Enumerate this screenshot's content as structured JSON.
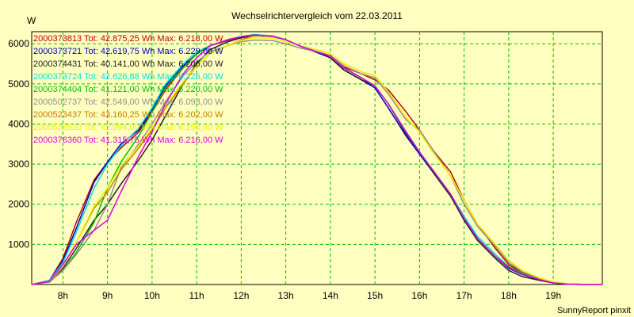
{
  "chart_data": {
    "type": "line",
    "title": "Wechselrichtervergleich vom 22.03.2011",
    "ylabel": "W",
    "footer": "SunnyReport pinxit",
    "ylim": [
      0,
      6300
    ],
    "xlim": [
      7.3,
      20.1
    ],
    "y_ticks": [
      1000,
      2000,
      3000,
      4000,
      5000,
      6000
    ],
    "x_ticks": [
      {
        "value": 8,
        "label": "8h"
      },
      {
        "value": 9,
        "label": "9h"
      },
      {
        "value": 10,
        "label": "10h"
      },
      {
        "value": 11,
        "label": "11h"
      },
      {
        "value": 12,
        "label": "12h"
      },
      {
        "value": 13,
        "label": "13h"
      },
      {
        "value": 14,
        "label": "14h"
      },
      {
        "value": 15,
        "label": "15h"
      },
      {
        "value": 16,
        "label": "16h"
      },
      {
        "value": 17,
        "label": "17h"
      },
      {
        "value": 18,
        "label": "18h"
      },
      {
        "value": 19,
        "label": "19h"
      }
    ],
    "grid": true,
    "legend_position": "top-left",
    "series": [
      {
        "legend": "2000373813 Tot: 42.875,25 Wh Max: 6.218,00 W",
        "color": "#c00000",
        "x": [
          7.3,
          7.7,
          8.0,
          8.3,
          8.7,
          9.0,
          9.3,
          9.7,
          10.0,
          10.3,
          10.7,
          11.0,
          11.3,
          11.7,
          12.0,
          12.3,
          12.7,
          13.0,
          13.3,
          13.7,
          14.0,
          14.3,
          14.7,
          15.0,
          15.3,
          15.7,
          16.0,
          16.3,
          16.7,
          17.0,
          17.3,
          17.7,
          18.0,
          18.3,
          18.7,
          19.0,
          19.3,
          19.7,
          20.1
        ],
        "y": [
          0,
          100,
          650,
          1550,
          2600,
          3050,
          3400,
          3800,
          4300,
          4850,
          5400,
          5750,
          5950,
          6080,
          6150,
          6200,
          6190,
          6100,
          5950,
          5800,
          5700,
          5420,
          5250,
          5100,
          4850,
          4300,
          3850,
          3350,
          2800,
          2100,
          1500,
          900,
          500,
          300,
          150,
          60,
          20,
          0,
          0
        ]
      },
      {
        "legend": "2000373721 Tot: 42.619,75 Wh Max: 6.229,00 W",
        "color": "#0000c0",
        "x": [
          7.3,
          7.7,
          8.0,
          8.3,
          8.7,
          9.0,
          9.3,
          9.7,
          10.0,
          10.3,
          10.7,
          11.0,
          11.3,
          11.7,
          12.0,
          12.3,
          12.7,
          13.0,
          13.3,
          13.7,
          14.0,
          14.3,
          14.7,
          15.0,
          15.3,
          15.7,
          16.0,
          16.3,
          16.7,
          17.0,
          17.3,
          17.7,
          18.0,
          18.3,
          18.7,
          19.0,
          19.3,
          19.7,
          20.1
        ],
        "y": [
          0,
          100,
          600,
          1400,
          2550,
          3050,
          3500,
          3850,
          4350,
          4950,
          5450,
          5750,
          5950,
          6100,
          6180,
          6229,
          6190,
          6100,
          5950,
          5780,
          5650,
          5350,
          5100,
          4900,
          4400,
          3700,
          3250,
          2800,
          2200,
          1650,
          1150,
          700,
          400,
          250,
          120,
          40,
          10,
          0,
          0
        ]
      },
      {
        "legend": "2000374431 Tot: 40.141,00 Wh Max: 6.206,00 W",
        "color": "#202020",
        "x": [
          7.3,
          7.7,
          8.0,
          8.3,
          8.7,
          9.0,
          9.3,
          9.7,
          10.0,
          10.3,
          10.7,
          11.0,
          11.3,
          11.7,
          12.0,
          12.3,
          12.7,
          13.0,
          13.3,
          13.7,
          14.0,
          14.3,
          14.7,
          15.0,
          15.3,
          15.7,
          16.0,
          16.3,
          16.7,
          17.0,
          17.3,
          17.7,
          18.0,
          18.3,
          18.7,
          19.0,
          19.3,
          19.7,
          20.1
        ],
        "y": [
          0,
          80,
          400,
          900,
          1600,
          2000,
          2500,
          3100,
          3600,
          4200,
          5000,
          5500,
          5850,
          6050,
          6150,
          6206,
          6180,
          6100,
          5950,
          5800,
          5650,
          5350,
          5100,
          4950,
          4500,
          3750,
          3300,
          2800,
          2200,
          1600,
          1100,
          650,
          350,
          200,
          100,
          40,
          10,
          0,
          0
        ]
      },
      {
        "legend": "2000373724 Tot: 42.626,88 Wh Max: 6.225,00 W",
        "color": "#00e0e0",
        "x": [
          7.3,
          7.7,
          8.0,
          8.3,
          8.7,
          9.0,
          9.3,
          9.7,
          10.0,
          10.3,
          10.7,
          11.0,
          11.3,
          11.7,
          12.0,
          12.3,
          12.7,
          13.0,
          13.3,
          13.7,
          14.0,
          14.3,
          14.7,
          15.0,
          15.3,
          15.7,
          16.0,
          16.3,
          16.7,
          17.0,
          17.3,
          17.7,
          18.0,
          18.3,
          18.7,
          19.0,
          19.3,
          19.7,
          20.1
        ],
        "y": [
          0,
          100,
          550,
          1300,
          2400,
          3000,
          3450,
          3900,
          4400,
          5000,
          5500,
          5800,
          5950,
          6100,
          6180,
          6225,
          6200,
          6100,
          5950,
          5800,
          5700,
          5400,
          5150,
          4950,
          4500,
          3800,
          3300,
          2850,
          2250,
          1700,
          1200,
          750,
          450,
          280,
          130,
          50,
          10,
          0,
          0
        ]
      },
      {
        "legend": "2000374404 Tot: 41.121,00 Wh Max: 6.220,00 W",
        "color": "#00c000",
        "x": [
          7.3,
          7.7,
          8.0,
          8.3,
          8.7,
          9.0,
          9.3,
          9.7,
          10.0,
          10.3,
          10.7,
          11.0,
          11.3,
          11.7,
          12.0,
          12.3,
          12.7,
          13.0,
          13.3,
          13.7,
          14.0,
          14.3,
          14.7,
          15.0,
          15.3,
          15.7,
          16.0,
          16.3,
          16.7,
          17.0,
          17.3,
          17.7,
          18.0,
          18.3,
          18.7,
          19.0,
          19.3,
          19.7,
          20.1
        ],
        "y": [
          0,
          80,
          350,
          800,
          1550,
          2400,
          3050,
          3700,
          4300,
          4900,
          5400,
          5750,
          5950,
          6100,
          6180,
          6220,
          6180,
          6100,
          5950,
          5800,
          5700,
          5400,
          5150,
          4950,
          4500,
          3800,
          3300,
          2850,
          2250,
          1650,
          1150,
          700,
          450,
          280,
          130,
          50,
          10,
          0,
          0
        ]
      },
      {
        "legend": "2000502737 Tot: 42.549,00 Wh Max: 6.093,00 W",
        "color": "#909090",
        "x": [
          7.3,
          7.7,
          8.0,
          8.3,
          8.7,
          9.0,
          9.3,
          9.7,
          10.0,
          10.3,
          10.7,
          11.0,
          11.3,
          11.7,
          12.0,
          12.3,
          12.7,
          13.0,
          13.3,
          13.7,
          14.0,
          14.3,
          14.7,
          15.0,
          15.3,
          15.7,
          16.0,
          16.3,
          16.7,
          17.0,
          17.3,
          17.7,
          18.0,
          18.3,
          18.7,
          19.0,
          19.3,
          19.7,
          20.1
        ],
        "y": [
          0,
          60,
          350,
          750,
          1350,
          2000,
          2900,
          3500,
          4000,
          4550,
          5200,
          5550,
          5800,
          5950,
          6050,
          6093,
          6080,
          6000,
          5900,
          5800,
          5700,
          5450,
          5250,
          5150,
          4750,
          4100,
          3850,
          3350,
          2700,
          2000,
          1450,
          950,
          550,
          320,
          150,
          60,
          15,
          0,
          0
        ]
      },
      {
        "legend": "2000523437 Tot: 43.160,25 Wh Max: 6.202,00 W",
        "color": "#c08000",
        "x": [
          7.3,
          7.7,
          8.0,
          8.3,
          8.7,
          9.0,
          9.3,
          9.7,
          10.0,
          10.3,
          10.7,
          11.0,
          11.3,
          11.7,
          12.0,
          12.3,
          12.7,
          13.0,
          13.3,
          13.7,
          14.0,
          14.3,
          14.7,
          15.0,
          15.3,
          15.7,
          16.0,
          16.3,
          16.7,
          17.0,
          17.3,
          17.7,
          18.0,
          18.3,
          18.7,
          19.0,
          19.3,
          19.7,
          20.1
        ],
        "y": [
          0,
          80,
          450,
          1050,
          1900,
          2300,
          2850,
          3400,
          3850,
          4400,
          5000,
          5450,
          5750,
          5950,
          6100,
          6202,
          6180,
          6100,
          5950,
          5850,
          5750,
          5500,
          5300,
          5200,
          4800,
          4150,
          3800,
          3300,
          2700,
          2100,
          1500,
          1000,
          600,
          350,
          160,
          60,
          15,
          0,
          0
        ]
      },
      {
        "legend": "2000523520 Tot: 42.994,00 Wh Max: 6.150,00 W",
        "color": "#f0f000",
        "x": [
          7.3,
          7.7,
          8.0,
          8.3,
          8.7,
          9.0,
          9.3,
          9.7,
          10.0,
          10.3,
          10.7,
          11.0,
          11.3,
          11.7,
          12.0,
          12.3,
          12.7,
          13.0,
          13.3,
          13.7,
          14.0,
          14.3,
          14.7,
          15.0,
          15.3,
          15.7,
          16.0,
          16.3,
          16.7,
          17.0,
          17.3,
          17.7,
          18.0,
          18.3,
          18.7,
          19.0,
          19.3,
          19.7,
          20.1
        ],
        "y": [
          0,
          80,
          450,
          1050,
          1950,
          2400,
          2950,
          3450,
          3900,
          4450,
          5050,
          5450,
          5750,
          5950,
          6080,
          6150,
          6140,
          6050,
          5950,
          5850,
          5750,
          5500,
          5300,
          5200,
          4800,
          4150,
          3800,
          3300,
          2700,
          2100,
          1500,
          1000,
          600,
          350,
          160,
          60,
          15,
          0,
          0
        ]
      },
      {
        "legend": "2000376360 Tot: 41.315,75 Wh Max: 6.216,00 W",
        "color": "#e000e0",
        "x": [
          7.3,
          7.7,
          8.0,
          8.3,
          8.7,
          9.0,
          9.3,
          9.7,
          10.0,
          10.3,
          10.7,
          11.0,
          11.3,
          11.7,
          12.0,
          12.3,
          12.7,
          13.0,
          13.3,
          13.7,
          14.0,
          14.3,
          14.7,
          15.0,
          15.3,
          15.7,
          16.0,
          16.3,
          16.7,
          17.0,
          17.3,
          17.7,
          18.0,
          18.3,
          18.7,
          19.0,
          19.3,
          19.7,
          20.1
        ],
        "y": [
          0,
          80,
          500,
          1000,
          1350,
          1600,
          2300,
          3200,
          3800,
          4500,
          5250,
          5650,
          5950,
          6100,
          6180,
          6216,
          6190,
          6100,
          5950,
          5800,
          5700,
          5400,
          5150,
          4950,
          4500,
          3800,
          3300,
          2850,
          2250,
          1650,
          1150,
          700,
          420,
          260,
          120,
          40,
          10,
          0,
          0
        ]
      }
    ]
  }
}
